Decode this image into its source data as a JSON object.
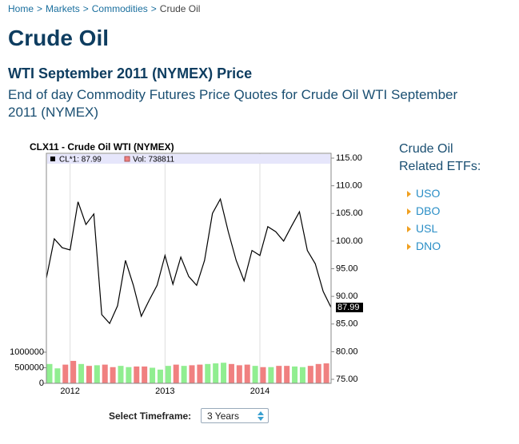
{
  "breadcrumb": [
    "Home",
    "Markets",
    "Commodities",
    "Crude Oil"
  ],
  "breadcrumb_separator": ">",
  "title": "Crude Oil",
  "subtitle": "WTI September 2011 (NYMEX) Price",
  "description": "End of day Commodity Futures Price Quotes for Crude Oil WTI September 2011 (NYMEX)",
  "chart_data": {
    "type": "line",
    "title": "CLX11 - Crude Oil WTI (NYMEX)",
    "categories": [
      null,
      null,
      null,
      "2012",
      null,
      null,
      null,
      null,
      null,
      null,
      null,
      null,
      null,
      null,
      null,
      "2013",
      null,
      null,
      null,
      null,
      null,
      null,
      null,
      null,
      null,
      null,
      null,
      "2014",
      null,
      null,
      null,
      null,
      null,
      null,
      null,
      null,
      null
    ],
    "series": [
      {
        "name": "CL*1: 87.99",
        "color": "#000000",
        "values": [
          93.3,
          100.4,
          98.8,
          98.4,
          107.1,
          103.0,
          104.9,
          86.7,
          85.1,
          88.3,
          96.5,
          92.0,
          86.4,
          89.3,
          92.0,
          97.4,
          92.2,
          97.1,
          93.6,
          92.0,
          96.5,
          105.0,
          107.6,
          101.7,
          96.5,
          92.8,
          98.3,
          97.4,
          102.6,
          101.7,
          100.0,
          102.7,
          105.3,
          98.3,
          95.9,
          90.9,
          87.99
        ]
      },
      {
        "name": "Vol: 738811",
        "axis": "y2",
        "color": "#f08080",
        "up_color": "#90ee90",
        "down_color": "#f08080",
        "values": [
          620000,
          480000,
          600000,
          720000,
          620000,
          560000,
          580000,
          600000,
          520000,
          560000,
          520000,
          540000,
          540000,
          500000,
          440000,
          560000,
          600000,
          560000,
          580000,
          600000,
          620000,
          640000,
          660000,
          620000,
          580000,
          600000,
          560000,
          520000,
          520000,
          560000,
          560000,
          540000,
          520000,
          560000,
          620000,
          640000,
          738811
        ]
      }
    ],
    "ylim": [
      75,
      115
    ],
    "yticks": [
      {
        "value": 75,
        "label": "75.00"
      },
      {
        "value": 80,
        "label": "80.00"
      },
      {
        "value": 85,
        "label": "85.00"
      },
      {
        "value": 90,
        "label": "90.00"
      },
      {
        "value": 95,
        "label": "95.00"
      },
      {
        "value": 100,
        "label": "100.00"
      },
      {
        "value": 105,
        "label": "105.00"
      },
      {
        "value": 110,
        "label": "110.00"
      },
      {
        "value": 115,
        "label": "115.00"
      }
    ],
    "y2lim": [
      0,
      1000000
    ],
    "y2ticks": [
      0,
      500000,
      1000000
    ],
    "grid": "x"
  },
  "etfs": {
    "heading": "Crude Oil Related ETFs:",
    "items": [
      "USO",
      "DBO",
      "USL",
      "DNO"
    ]
  },
  "timeframe": {
    "label": "Select Timeframe:",
    "selected": "3 Years"
  }
}
